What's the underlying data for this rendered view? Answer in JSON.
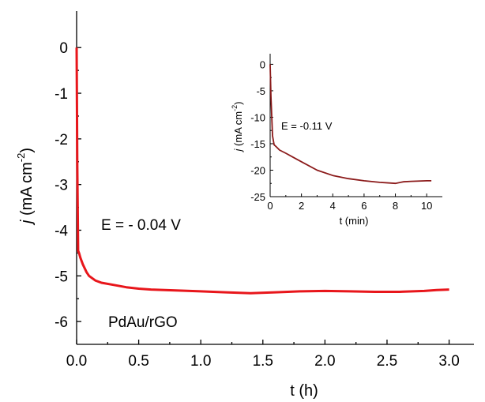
{
  "colors": {
    "main_line": "#e8161b",
    "inset_line": "#8b1a1a",
    "axis": "#000000"
  },
  "chart_data": [
    {
      "type": "line",
      "title": "",
      "xlabel": "t (h)",
      "ylabel_italic": "j",
      "ylabel_rest": " (mA cm",
      "ylabel_sup": "-2",
      "ylabel_close": ")",
      "xlim": [
        0,
        3.2
      ],
      "ylim": [
        -6.5,
        0.8
      ],
      "xticks": [
        0.0,
        0.5,
        1.0,
        1.5,
        2.0,
        2.5,
        3.0
      ],
      "xtick_labels": [
        "0.0",
        "0.5",
        "1.0",
        "1.5",
        "2.0",
        "2.5",
        "3.0"
      ],
      "yticks": [
        0,
        -1,
        -2,
        -3,
        -4,
        -5,
        -6
      ],
      "ytick_labels": [
        "0",
        "-1",
        "-2",
        "-3",
        "-4",
        "-5",
        "-6"
      ],
      "grid": false,
      "annotations": [
        "E = - 0.04 V",
        "PdAu/rGO"
      ],
      "series": [
        {
          "x": [
            0,
            0.005,
            0.012,
            0.02,
            0.03,
            0.05,
            0.08,
            0.1,
            0.15,
            0.2,
            0.3,
            0.4,
            0.5,
            0.6,
            0.8,
            1.0,
            1.2,
            1.4,
            1.6,
            1.8,
            2.0,
            2.2,
            2.4,
            2.6,
            2.8,
            2.9,
            3.0
          ],
          "y": [
            0.0,
            -2.5,
            -4.45,
            -4.5,
            -4.6,
            -4.75,
            -4.92,
            -5.0,
            -5.1,
            -5.15,
            -5.2,
            -5.25,
            -5.28,
            -5.3,
            -5.32,
            -5.34,
            -5.36,
            -5.38,
            -5.36,
            -5.34,
            -5.33,
            -5.34,
            -5.35,
            -5.35,
            -5.33,
            -5.31,
            -5.3
          ]
        }
      ]
    },
    {
      "type": "line",
      "title": "",
      "xlabel": "t (min)",
      "ylabel_italic": "j",
      "ylabel_rest": " (mA cm",
      "ylabel_sup": "-2",
      "ylabel_close": ")",
      "xlim": [
        0,
        11
      ],
      "ylim": [
        -25,
        2
      ],
      "xticks": [
        0,
        2,
        4,
        6,
        8,
        10
      ],
      "xtick_labels": [
        "0",
        "2",
        "4",
        "6",
        "8",
        "10"
      ],
      "yticks": [
        0,
        -5,
        -10,
        -15,
        -20,
        -25
      ],
      "ytick_labels": [
        "0",
        "-5",
        "-10",
        "-15",
        "-20",
        "-25"
      ],
      "grid": false,
      "annotations": [
        "E = -0.11 V"
      ],
      "series": [
        {
          "x": [
            0,
            0.05,
            0.15,
            0.25,
            0.4,
            0.6,
            1,
            1.5,
            2,
            3,
            4,
            5,
            6,
            7,
            8,
            8.5,
            9,
            10,
            10.3
          ],
          "y": [
            0.0,
            -6,
            -13.5,
            -15.2,
            -15.6,
            -16.2,
            -16.8,
            -17.6,
            -18.4,
            -20.0,
            -21.0,
            -21.6,
            -22.0,
            -22.3,
            -22.5,
            -22.2,
            -22.1,
            -22.0,
            -22.0
          ]
        }
      ]
    }
  ]
}
